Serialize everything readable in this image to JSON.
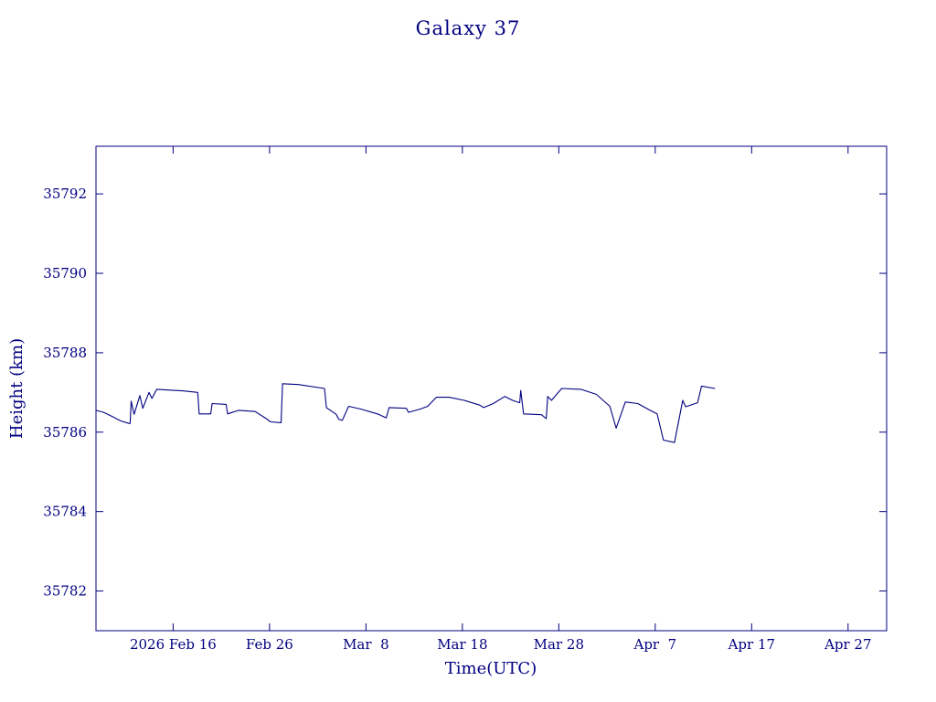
{
  "colors": {
    "accent": "#000080",
    "background": "#ffffff"
  },
  "chart_data": {
    "type": "line",
    "title": "Galaxy 37",
    "xlabel": "Time(UTC)",
    "ylabel": "Height (km)",
    "grid": false,
    "legend": null,
    "line_color": "#000080",
    "x_axis_note": "x values are days; day 0 = 2026 Feb 8",
    "xlim": [
      0,
      82
    ],
    "ylim": [
      35781.0,
      35793.2
    ],
    "x_ticks": [
      {
        "value": 8,
        "label": "2026 Feb 16"
      },
      {
        "value": 18,
        "label": "Feb 26"
      },
      {
        "value": 28,
        "label": "Mar  8"
      },
      {
        "value": 38,
        "label": "Mar 18"
      },
      {
        "value": 48,
        "label": "Mar 28"
      },
      {
        "value": 58,
        "label": "Apr  7"
      },
      {
        "value": 68,
        "label": "Apr 17"
      },
      {
        "value": 78,
        "label": "Apr 27"
      }
    ],
    "y_ticks": [
      {
        "value": 35782,
        "label": "35782"
      },
      {
        "value": 35784,
        "label": "35784"
      },
      {
        "value": 35786,
        "label": "35786"
      },
      {
        "value": 35788,
        "label": "35788"
      },
      {
        "value": 35790,
        "label": "35790"
      },
      {
        "value": 35792,
        "label": "35792"
      }
    ],
    "series": [
      {
        "name": "height-km",
        "points": [
          [
            0.0,
            35786.55
          ],
          [
            0.8,
            35786.5
          ],
          [
            1.8,
            35786.38
          ],
          [
            2.6,
            35786.28
          ],
          [
            3.4,
            35786.22
          ],
          [
            3.55,
            35786.22
          ],
          [
            3.65,
            35786.78
          ],
          [
            3.95,
            35786.45
          ],
          [
            4.55,
            35786.92
          ],
          [
            4.85,
            35786.6
          ],
          [
            5.5,
            35787.0
          ],
          [
            5.8,
            35786.85
          ],
          [
            6.3,
            35787.08
          ],
          [
            7.5,
            35787.06
          ],
          [
            9.0,
            35787.04
          ],
          [
            10.55,
            35787.0
          ],
          [
            10.7,
            35786.46
          ],
          [
            11.9,
            35786.46
          ],
          [
            12.05,
            35786.72
          ],
          [
            13.5,
            35786.7
          ],
          [
            13.65,
            35786.46
          ],
          [
            14.8,
            35786.55
          ],
          [
            16.5,
            35786.52
          ],
          [
            17.6,
            35786.35
          ],
          [
            18.1,
            35786.26
          ],
          [
            19.2,
            35786.24
          ],
          [
            19.35,
            35787.22
          ],
          [
            21.0,
            35787.2
          ],
          [
            23.7,
            35787.1
          ],
          [
            23.9,
            35786.62
          ],
          [
            24.9,
            35786.45
          ],
          [
            25.2,
            35786.32
          ],
          [
            25.55,
            35786.3
          ],
          [
            26.2,
            35786.65
          ],
          [
            27.5,
            35786.58
          ],
          [
            29.3,
            35786.45
          ],
          [
            30.1,
            35786.36
          ],
          [
            30.4,
            35786.62
          ],
          [
            32.2,
            35786.6
          ],
          [
            32.4,
            35786.5
          ],
          [
            33.6,
            35786.58
          ],
          [
            34.4,
            35786.65
          ],
          [
            35.3,
            35786.88
          ],
          [
            36.6,
            35786.88
          ],
          [
            38.2,
            35786.8
          ],
          [
            39.8,
            35786.68
          ],
          [
            40.2,
            35786.62
          ],
          [
            41.2,
            35786.72
          ],
          [
            42.4,
            35786.9
          ],
          [
            43.2,
            35786.8
          ],
          [
            43.95,
            35786.74
          ],
          [
            44.05,
            35787.05
          ],
          [
            44.35,
            35786.46
          ],
          [
            46.2,
            35786.44
          ],
          [
            46.7,
            35786.34
          ],
          [
            46.85,
            35786.9
          ],
          [
            47.25,
            35786.8
          ],
          [
            48.3,
            35787.1
          ],
          [
            50.3,
            35787.08
          ],
          [
            51.9,
            35786.95
          ],
          [
            53.3,
            35786.65
          ],
          [
            53.95,
            35786.1
          ],
          [
            54.9,
            35786.76
          ],
          [
            56.2,
            35786.72
          ],
          [
            57.4,
            35786.56
          ],
          [
            58.2,
            35786.46
          ],
          [
            58.85,
            35785.8
          ],
          [
            60.0,
            35785.74
          ],
          [
            60.85,
            35786.8
          ],
          [
            61.15,
            35786.64
          ],
          [
            62.4,
            35786.74
          ],
          [
            62.8,
            35787.16
          ],
          [
            64.2,
            35787.1
          ]
        ]
      }
    ]
  }
}
